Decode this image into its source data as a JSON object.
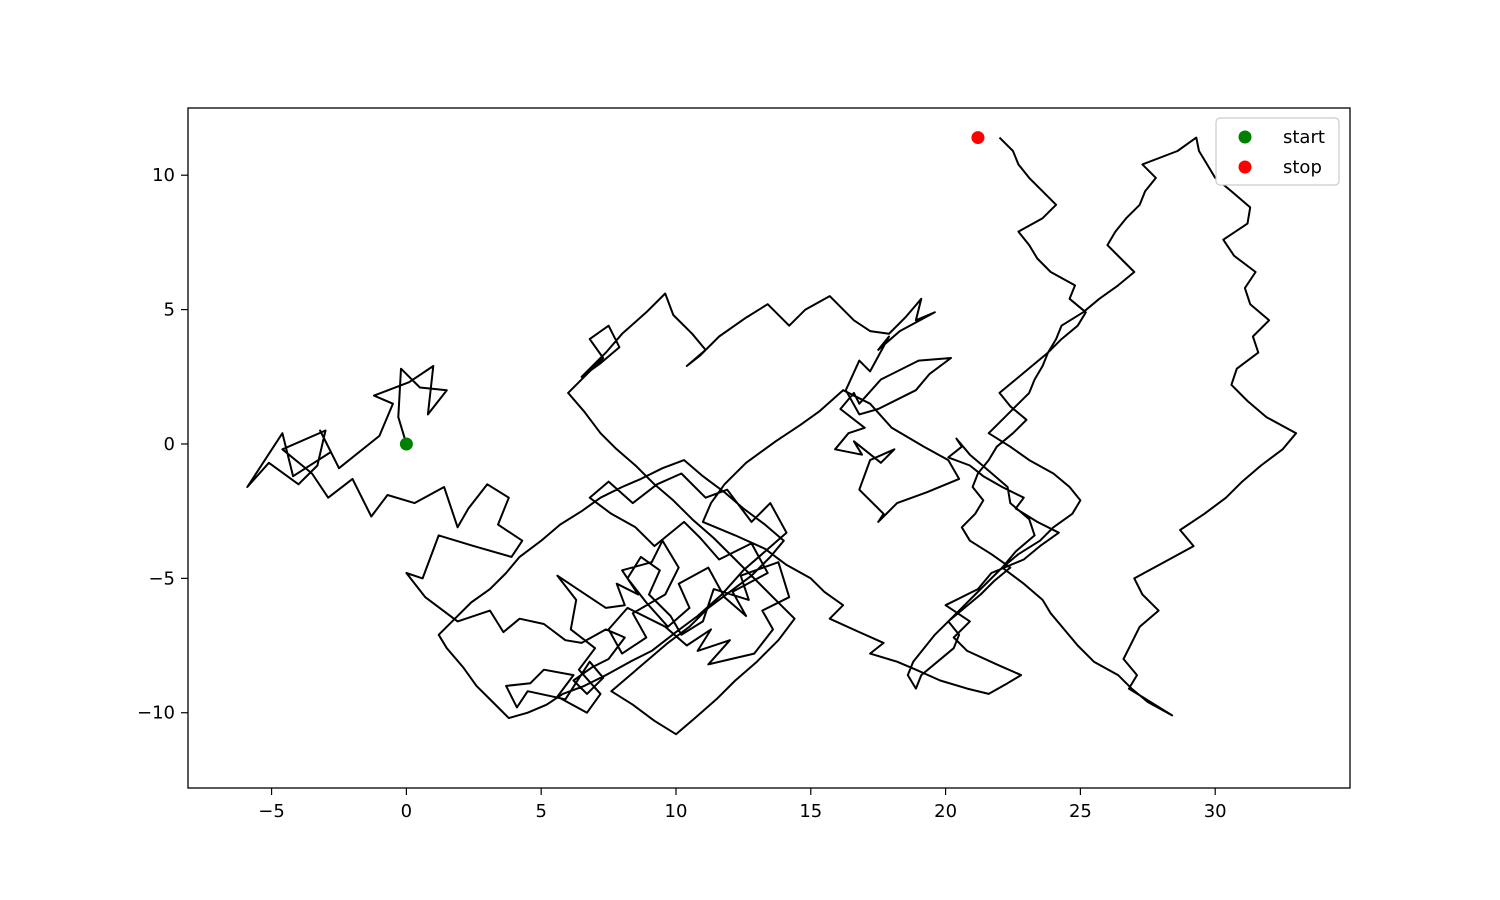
{
  "chart_data": {
    "type": "line",
    "title": "",
    "xlabel": "",
    "ylabel": "",
    "xlim": [
      -8.1,
      35.0
    ],
    "ylim": [
      -12.8,
      12.5
    ],
    "x_ticks": [
      -5,
      0,
      5,
      10,
      15,
      20,
      25,
      30
    ],
    "x_tick_labels": [
      "−5",
      "0",
      "5",
      "10",
      "15",
      "20",
      "25",
      "30"
    ],
    "y_ticks": [
      -10,
      -5,
      0,
      5,
      10
    ],
    "y_tick_labels": [
      "−10",
      "−5",
      "0",
      "5",
      "10"
    ],
    "grid": false,
    "legend_position": "top-right",
    "series": [
      {
        "kind": "line",
        "color": "#000000",
        "x": [
          0,
          -0.3,
          -0.2,
          0.5,
          1.5,
          0.8,
          1.0,
          0.1,
          -1.2,
          -0.5,
          -1.0,
          -2.5,
          -3.2,
          -2.8,
          -4.2,
          -4.6,
          -5.9,
          -5.1,
          -4.0,
          -3.3,
          -3.0,
          -4.6,
          -3.5,
          -2.9,
          -2.0,
          -1.3,
          -0.7,
          0.3,
          1.4,
          1.9,
          2.3,
          3.0,
          3.8,
          3.4,
          4.3,
          3.9,
          2.5,
          1.2,
          0.6,
          0.0,
          0.7,
          1.9,
          3.1,
          3.6,
          4.2,
          5.1,
          5.9,
          6.5,
          7.4,
          8.1,
          7.5,
          6.9,
          6.2,
          6.7,
          7.3,
          6.8,
          5.9,
          4.5,
          4.1,
          3.7,
          4.6,
          5.1,
          6.2,
          5.6,
          6.7,
          7.2,
          6.4,
          7.0,
          6.1,
          6.3,
          5.6,
          6.5,
          7.4,
          8.1,
          7.8,
          8.6,
          8.0,
          9.1,
          9.5,
          10.1,
          9.6,
          8.4,
          8.9,
          8.0,
          7.5,
          8.2,
          9.6,
          10.4,
          11.3,
          10.8,
          12.0,
          11.2,
          12.9,
          13.6,
          13.2,
          14.2,
          13.8,
          12.4,
          12.7,
          11.4,
          11.0,
          10.2,
          9.8,
          9.0,
          9.4,
          8.7,
          8.2,
          8.9,
          9.7,
          10.5,
          10.1,
          11.2,
          11.8,
          12.6,
          12.1,
          13.4,
          12.8,
          11.6,
          10.9,
          10.3,
          9.2,
          8.5,
          7.6,
          6.8,
          7.5,
          8.4,
          9.3,
          10.2,
          11.1,
          11.9,
          12.8,
          13.5,
          14.1,
          13.3,
          12.5,
          11.7,
          10.8,
          10.0,
          9.1,
          8.3,
          7.4,
          6.6,
          5.8,
          5.2,
          4.5,
          3.8,
          3.2,
          2.6,
          2.1,
          1.5,
          1.2,
          1.8,
          2.4,
          3.1,
          3.7,
          4.2,
          5.0,
          5.7,
          6.5,
          7.2,
          8.0,
          8.7,
          9.5,
          10.3,
          11.0,
          11.8,
          12.5,
          13.3,
          14.0,
          13.5,
          12.8,
          12.0,
          11.2,
          10.5,
          9.7,
          9.0,
          8.3,
          7.6,
          8.4,
          9.2,
          10.0,
          10.7,
          11.5,
          12.2,
          13.0,
          13.8,
          14.4,
          13.7,
          12.9,
          12.2,
          11.4,
          10.6,
          9.9,
          9.2,
          8.5,
          7.8,
          7.2,
          6.6,
          6.0,
          6.7,
          7.3,
          6.8,
          7.5,
          7.9,
          7.2,
          6.5,
          7.4,
          8.0,
          8.9,
          9.6,
          9.9,
          10.6,
          11.1,
          10.4,
          10.9,
          11.6,
          12.6,
          13.4,
          14.2,
          14.8,
          15.7,
          16.6,
          17.2,
          17.9,
          18.5,
          19.1,
          18.9,
          19.6,
          18.3,
          17.5,
          17.9,
          17.2,
          16.8,
          16.3,
          16.8,
          17.5,
          18.9,
          19.4,
          20.2,
          19.0,
          17.6,
          16.8,
          16.6,
          16.1,
          17.0,
          16.4,
          15.9,
          16.9,
          16.6,
          17.6,
          18.1,
          17.2,
          16.8,
          17.7,
          17.5,
          18.2,
          19.3,
          20.5,
          20.1,
          19.2,
          18.0,
          17.2,
          16.2,
          15.3,
          14.6,
          13.7,
          12.6,
          11.8,
          11.3,
          11.0,
          12.2,
          13.3,
          14.1,
          15.0,
          15.5,
          16.2,
          15.7,
          16.8,
          17.7,
          17.2,
          18.2,
          18.9,
          19.8,
          20.8,
          21.6,
          22.3,
          22.8,
          21.9,
          20.8,
          20.3,
          20.9,
          20.0,
          21.2,
          21.7,
          22.9,
          23.5,
          24.2,
          23.4,
          22.6,
          22.9,
          22.1,
          21.4,
          20.9,
          20.1,
          20.6,
          20.4,
          20.9,
          21.6,
          22.3,
          22.4,
          23.1,
          23.3,
          22.6,
          22.1,
          22.9,
          23.6,
          23.9,
          24.4,
          24.9,
          25.5,
          26.4,
          26.9,
          27.5,
          28.4,
          27.6,
          26.8,
          27.1,
          26.6,
          26.9,
          27.2,
          27.9,
          27.3,
          27.0,
          28.1,
          29.2,
          28.7,
          29.6,
          30.4,
          31.0,
          31.7,
          32.5,
          33.0,
          31.9,
          31.2,
          30.6,
          30.8,
          31.6,
          31.4,
          32.0,
          31.3,
          31.1,
          31.5,
          30.7,
          30.3,
          31.2,
          31.3,
          30.6,
          30.0,
          29.7,
          29.4,
          29.3,
          28.6,
          27.3,
          27.8,
          27.4,
          27.2,
          26.7,
          26.3,
          26.0,
          26.5,
          27.0,
          26.4,
          25.7,
          25.1,
          24.3,
          24.1,
          23.8,
          23.6,
          23.3,
          23.1,
          22.6,
          22.1,
          21.6,
          22.4,
          23.1,
          24.0,
          24.6,
          25.0,
          24.7,
          24.0,
          23.5,
          22.7,
          22.1,
          21.6,
          21.1,
          20.6,
          20.1,
          19.6,
          19.2,
          18.8,
          18.6,
          18.9,
          19.1,
          19.7,
          20.3,
          20.5,
          20.1,
          20.7,
          21.3,
          21.8,
          22.4,
          21.7,
          20.9,
          20.6,
          21.1,
          21.4,
          21.0,
          21.2,
          21.6,
          21.9,
          22.5,
          23.0,
          22.4,
          22.0,
          22.6,
          23.2,
          23.8,
          24.3,
          24.9,
          25.2,
          24.6,
          24.8,
          23.9,
          23.4,
          23.1,
          22.7,
          23.6,
          24.1,
          23.6,
          23.1,
          22.7,
          22.5,
          22.0,
          21.5,
          21.2
        ]
      }
    ],
    "start": {
      "label": "start",
      "x": 0.0,
      "y": 0.0,
      "color": "#008000"
    },
    "stop": {
      "label": "stop",
      "x": 21.2,
      "y": 11.4,
      "color": "#ff0000"
    }
  }
}
